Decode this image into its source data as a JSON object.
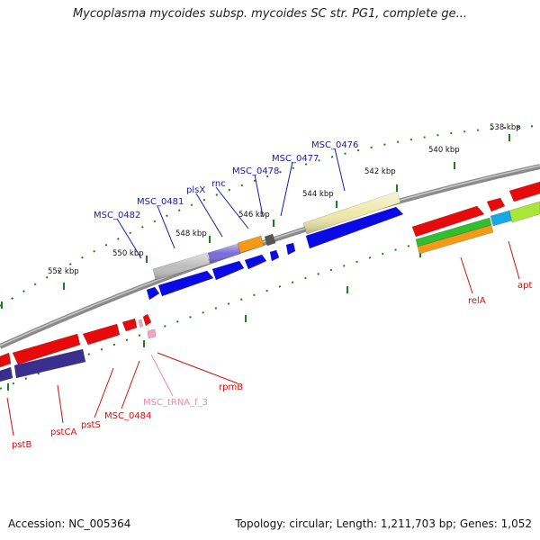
{
  "title": "Mycoplasma mycoides subsp. mycoides SC str. PG1, complete ge...",
  "footer": {
    "accession": "Accession: NC_005364",
    "summary": "Topology: circular; Length: 1,211,703 bp; Genes: 1,052"
  },
  "scale_labels": [
    "538 kbp",
    "540 kbp",
    "542 kbp",
    "544 kbp",
    "546 kbp",
    "548 kbp",
    "550 kbp",
    "552 kbp"
  ],
  "upper_gene_labels": [
    "MSC_0476",
    "MSC_0477",
    "MSC_0478",
    "rnc",
    "plsX",
    "MSC_0481",
    "MSC_0482"
  ],
  "lower_gene_labels": [
    "apt",
    "relA",
    "rpmB",
    "MSC_tRNA_f_3",
    "MSC_0484",
    "pstS",
    "pstCA",
    "pstB"
  ],
  "colors": {
    "upper_label": "#1a1aaa",
    "lower_label": "#cc1111",
    "trna_label": "#ee88aa",
    "backbone": "#8a8a8a",
    "tick": "#1e7d1e",
    "cds_blue": "#0a0ae6",
    "cds_red": "#e60a0a"
  }
}
